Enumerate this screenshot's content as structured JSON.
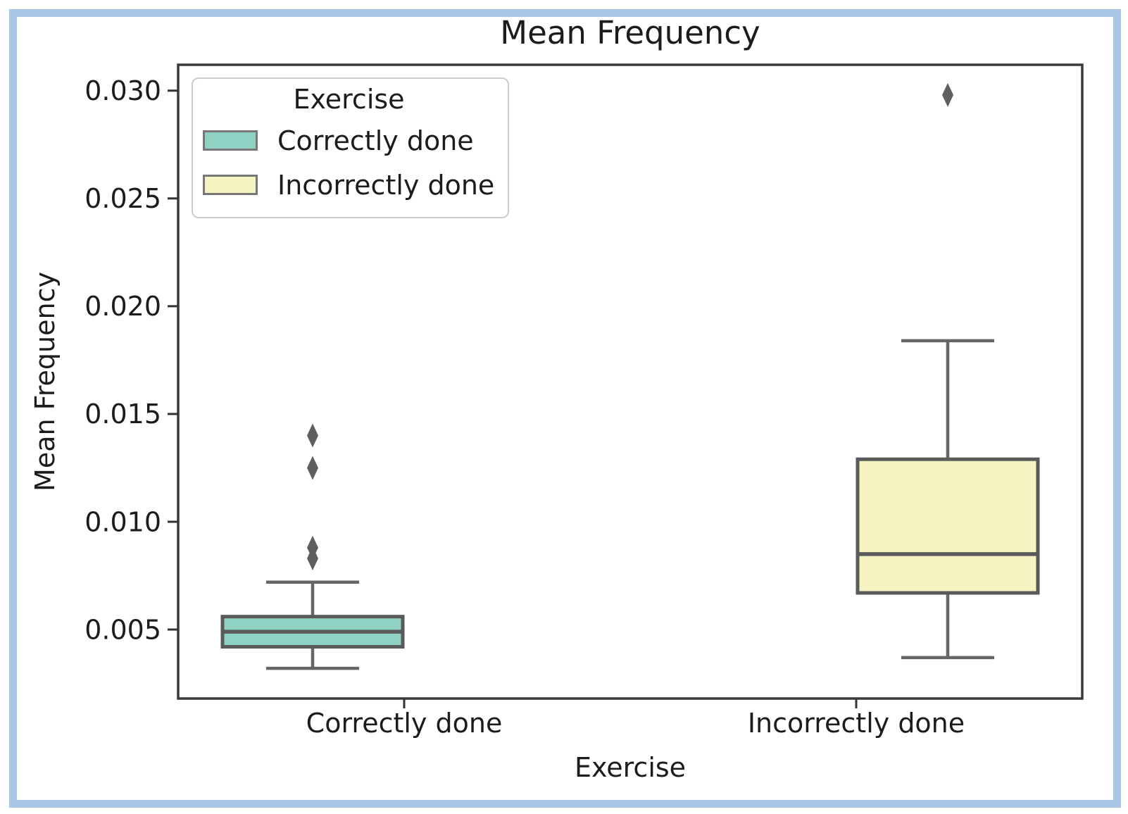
{
  "window": {
    "border_color": "#aac6e7",
    "background": "#ffffff"
  },
  "chart_data": {
    "type": "boxplot",
    "title": "Mean Frequency",
    "xlabel": "Exercise",
    "ylabel": "Mean Frequency",
    "categories": [
      "Correctly done",
      "Incorrectly done"
    ],
    "ylim": [
      0.0018,
      0.0312
    ],
    "yticks": [
      0.005,
      0.01,
      0.015,
      0.02,
      0.025,
      0.03
    ],
    "grid": false,
    "legend": {
      "title": "Exercise",
      "position": "upper left",
      "entries": [
        {
          "label": "Correctly done",
          "color": "#8fd2c3"
        },
        {
          "label": "Incorrectly done",
          "color": "#f5f3c1"
        }
      ]
    },
    "series": [
      {
        "name": "Correctly done",
        "category": "Correctly done",
        "color": "#8fd2c3",
        "whisker_low": 0.0032,
        "q1": 0.0042,
        "median": 0.0049,
        "q3": 0.0056,
        "whisker_high": 0.0072,
        "outliers": [
          0.0083,
          0.0088,
          0.0125,
          0.014
        ]
      },
      {
        "name": "Incorrectly done",
        "category": "Incorrectly done",
        "color": "#f5f3c1",
        "whisker_low": 0.0037,
        "q1": 0.0067,
        "median": 0.0085,
        "q3": 0.0129,
        "whisker_high": 0.0184,
        "outliers": [
          0.0298
        ]
      }
    ],
    "style": {
      "box_edge_color": "#5a5a5a",
      "whisker_color": "#666666",
      "median_color": "#5a5a5a",
      "outlier_color": "#5f5f5f",
      "spine_color": "#3a3a3a",
      "tick_color": "#333333",
      "text_color": "#1c1c1c"
    }
  }
}
